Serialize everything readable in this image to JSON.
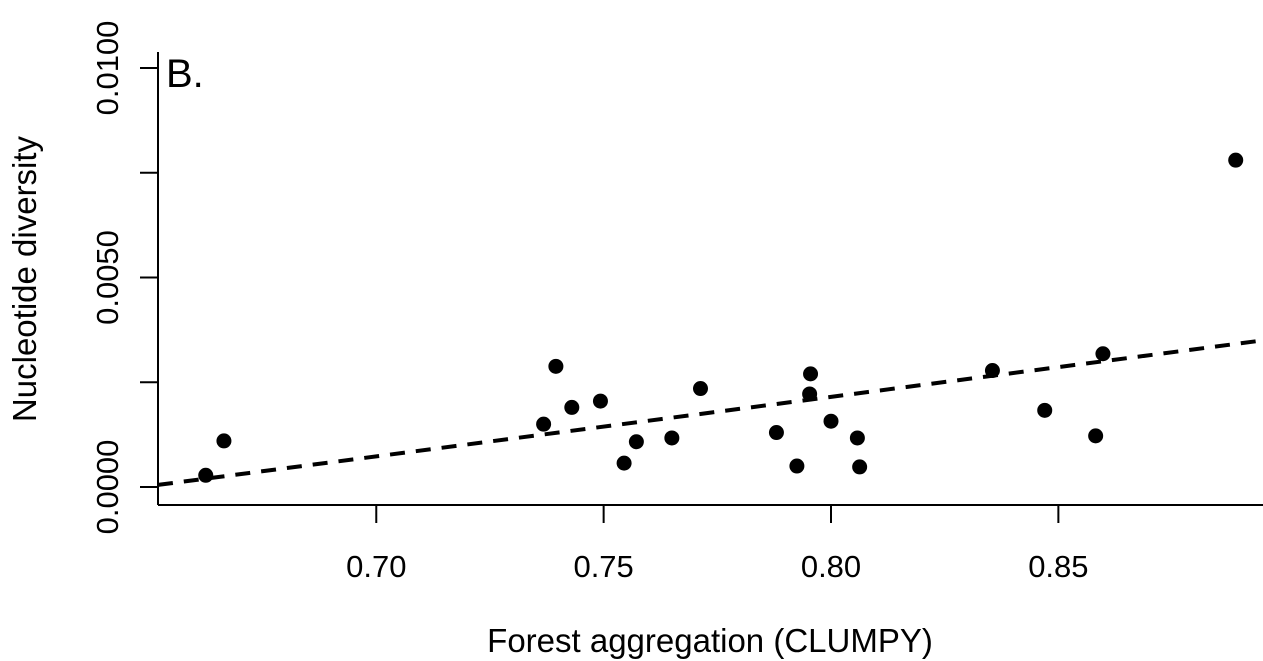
{
  "chart_data": {
    "type": "scatter",
    "panel_label": "B.",
    "xlabel": "Forest aggregation (CLUMPY)",
    "ylabel": "Nucleotide diversity",
    "xlim": [
      0.652,
      0.895
    ],
    "ylim": [
      0.0,
      0.01
    ],
    "x_ticks": [
      0.7,
      0.75,
      0.8,
      0.85
    ],
    "x_tick_labels": [
      "0.70",
      "0.75",
      "0.80",
      "0.85"
    ],
    "y_ticks": [
      0.0,
      0.0025,
      0.005,
      0.0075,
      0.01
    ],
    "y_tick_labels": [
      "0.0000",
      "",
      "0.0050",
      "",
      "0.0100"
    ],
    "grid": false,
    "points": [
      {
        "x": 0.6625,
        "y": 0.00028
      },
      {
        "x": 0.6665,
        "y": 0.0011
      },
      {
        "x": 0.7368,
        "y": 0.0015
      },
      {
        "x": 0.7395,
        "y": 0.00288
      },
      {
        "x": 0.743,
        "y": 0.0019
      },
      {
        "x": 0.7493,
        "y": 0.00205
      },
      {
        "x": 0.7545,
        "y": 0.00057
      },
      {
        "x": 0.7572,
        "y": 0.00108
      },
      {
        "x": 0.765,
        "y": 0.00117
      },
      {
        "x": 0.7713,
        "y": 0.00235
      },
      {
        "x": 0.788,
        "y": 0.0013
      },
      {
        "x": 0.7925,
        "y": 0.0005
      },
      {
        "x": 0.7953,
        "y": 0.00222
      },
      {
        "x": 0.7955,
        "y": 0.0027
      },
      {
        "x": 0.8,
        "y": 0.00157
      },
      {
        "x": 0.8058,
        "y": 0.00117
      },
      {
        "x": 0.8063,
        "y": 0.00048
      },
      {
        "x": 0.8355,
        "y": 0.00278
      },
      {
        "x": 0.847,
        "y": 0.00183
      },
      {
        "x": 0.8582,
        "y": 0.00122
      },
      {
        "x": 0.8598,
        "y": 0.00318
      },
      {
        "x": 0.889,
        "y": 0.0078
      }
    ],
    "trendline": {
      "style": "dashed",
      "x": [
        0.652,
        0.895
      ],
      "y": [
        5e-05,
        0.0035
      ]
    }
  }
}
